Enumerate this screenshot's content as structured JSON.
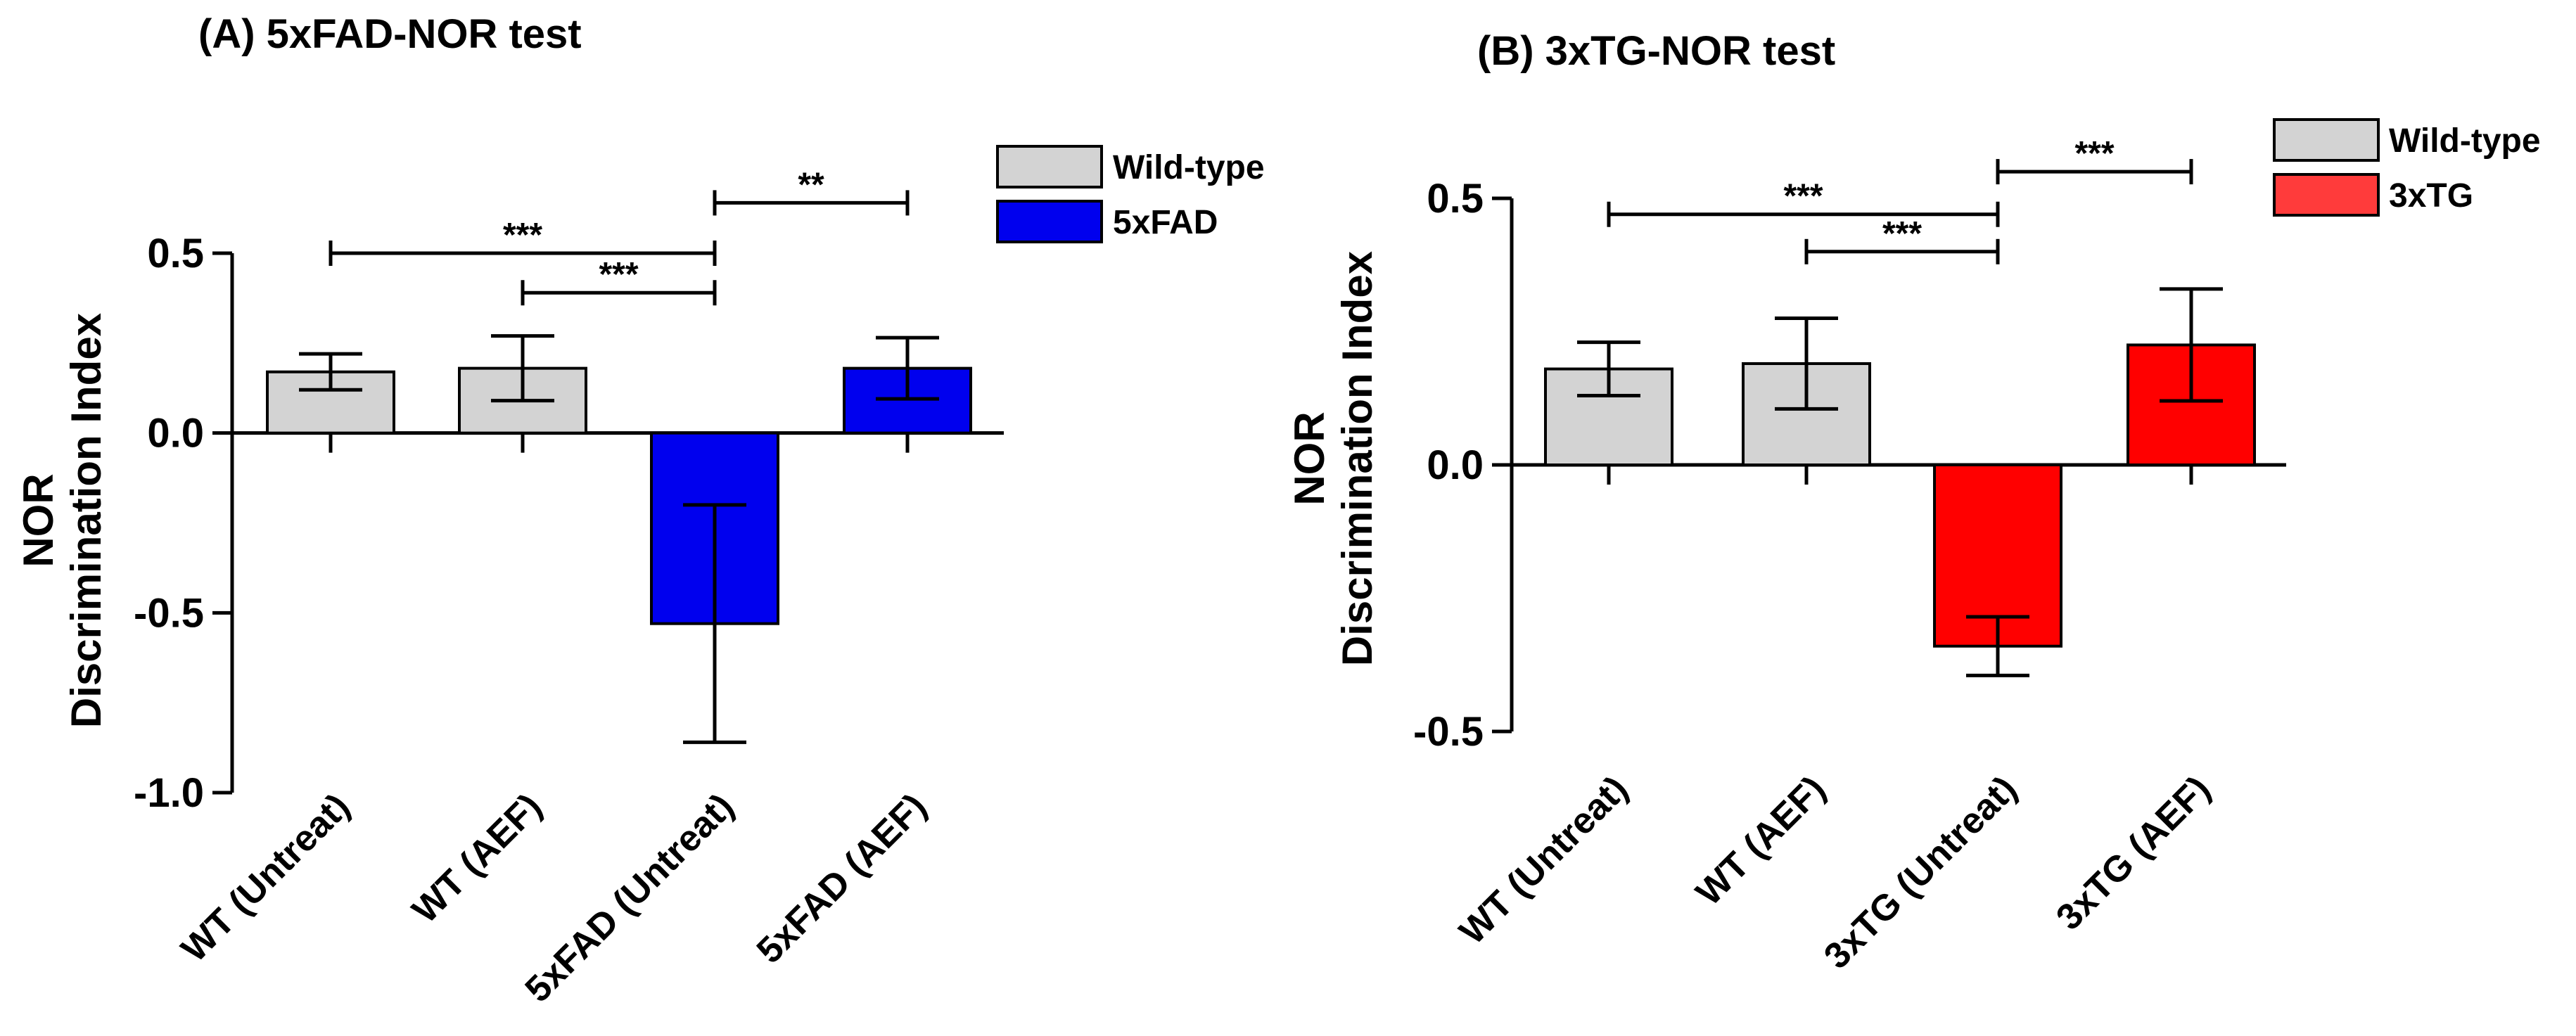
{
  "chart_data": [
    {
      "type": "bar",
      "title": "(A) 5xFAD-NOR test",
      "ylabel_line1": "NOR",
      "ylabel_line2": "Discrimination Index",
      "xlabel": "",
      "ylim": [
        -1.0,
        0.5
      ],
      "yticks": [
        {
          "value": 0.5,
          "label": "0.5"
        },
        {
          "value": 0.0,
          "label": "0.0"
        },
        {
          "value": -0.5,
          "label": "-0.5"
        },
        {
          "value": -1.0,
          "label": "-1.0"
        }
      ],
      "categories": [
        "WT (Untreat)",
        "WT (AEF)",
        "5xFAD (Untreat)",
        "5xFAD (AEF)"
      ],
      "values": [
        0.17,
        0.18,
        -0.53,
        0.18
      ],
      "errors": [
        0.05,
        0.09,
        0.33,
        0.085
      ],
      "groups": [
        "Wild-type",
        "Wild-type",
        "5xFAD",
        "5xFAD"
      ],
      "legend": [
        {
          "label": "Wild-type",
          "color": "#d3d3d3"
        },
        {
          "label": "5xFAD",
          "color": "#0000ee"
        }
      ],
      "significance": [
        {
          "from": 0,
          "to": 2,
          "at": 0.5,
          "label": "***"
        },
        {
          "from": 1,
          "to": 2,
          "at": 0.39,
          "label": "***"
        },
        {
          "from": 2,
          "to": 3,
          "at": 0.64,
          "label": "**"
        }
      ]
    },
    {
      "type": "bar",
      "title": "(B) 3xTG-NOR test",
      "ylabel_line1": "NOR",
      "ylabel_line2": "Discrimination Index",
      "xlabel": "",
      "ylim": [
        -0.5,
        0.5
      ],
      "yticks": [
        {
          "value": 0.5,
          "label": "0.5"
        },
        {
          "value": 0.0,
          "label": "0.0"
        },
        {
          "value": -0.5,
          "label": "-0.5"
        }
      ],
      "categories": [
        "WT (Untreat)",
        "WT (AEF)",
        "3xTG (Untreat)",
        "3xTG (AEF)"
      ],
      "values": [
        0.18,
        0.19,
        -0.34,
        0.225
      ],
      "errors": [
        0.05,
        0.085,
        0.055,
        0.105
      ],
      "groups": [
        "Wild-type",
        "Wild-type",
        "3xTG",
        "3xTG"
      ],
      "legend": [
        {
          "label": "Wild-type",
          "color": "#d3d3d3"
        },
        {
          "label": "3xTG",
          "color": "#ff0000"
        }
      ],
      "significance": [
        {
          "from": 0,
          "to": 2,
          "at": 0.47,
          "label": "***"
        },
        {
          "from": 1,
          "to": 2,
          "at": 0.4,
          "label": "***"
        },
        {
          "from": 2,
          "to": 3,
          "at": 0.55,
          "label": "***"
        }
      ]
    }
  ]
}
